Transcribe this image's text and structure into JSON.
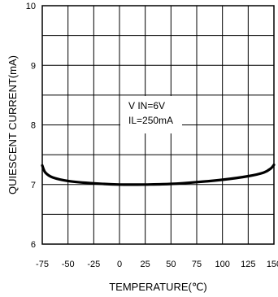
{
  "chart_data": {
    "type": "line",
    "xlabel": "TEMPERATURE(℃)",
    "ylabel": "QUIESCENT CURRENT(mA)",
    "xlim": [
      -75,
      150
    ],
    "ylim": [
      6,
      10
    ],
    "x_ticks": [
      -75,
      -50,
      -25,
      0,
      25,
      50,
      75,
      100,
      125,
      150
    ],
    "x_tick_labels": [
      "-75",
      "-50",
      "-25",
      "0",
      "25",
      "50",
      "75",
      "100",
      "125",
      "150"
    ],
    "y_ticks": [
      6,
      7,
      8,
      9,
      10
    ],
    "y_tick_labels": [
      "6",
      "7",
      "8",
      "9",
      "10"
    ],
    "grid": true,
    "annotation": [
      "V IN=6V",
      "IL=250mA"
    ],
    "series": [
      {
        "x": [
          -75,
          -72,
          -65,
          -50,
          -25,
          0,
          25,
          50,
          75,
          100,
          125,
          140,
          147,
          150
        ],
        "y": [
          7.32,
          7.2,
          7.12,
          7.06,
          7.02,
          7.0,
          7.0,
          7.01,
          7.04,
          7.08,
          7.14,
          7.2,
          7.27,
          7.33
        ]
      }
    ]
  }
}
